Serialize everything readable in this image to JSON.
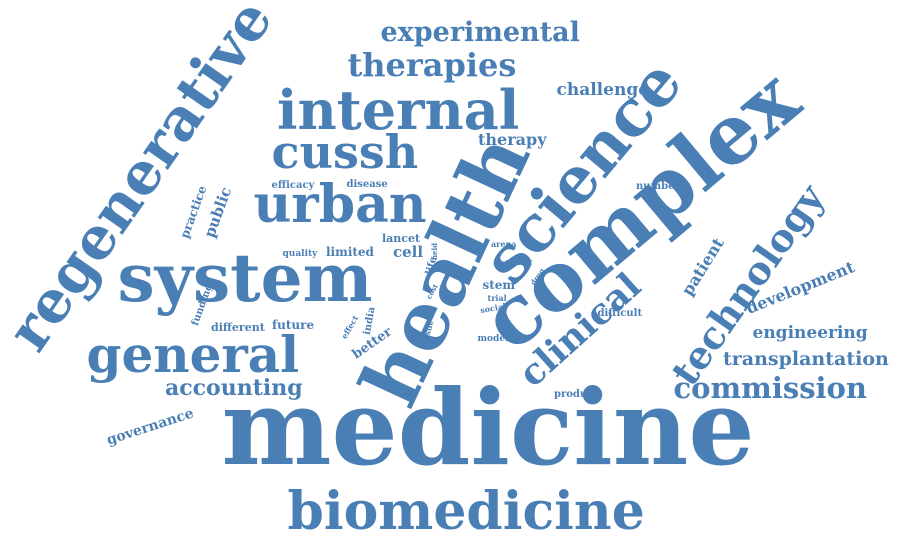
{
  "colors": {
    "word": "#4a7fb5",
    "background": "#ffffff"
  },
  "words": [
    {
      "id": "medicine",
      "text": "medicine"
    },
    {
      "id": "complex",
      "text": "complex"
    },
    {
      "id": "health",
      "text": "health"
    },
    {
      "id": "system",
      "text": "system"
    },
    {
      "id": "science",
      "text": "science"
    },
    {
      "id": "regenerative",
      "text": "regenerative"
    },
    {
      "id": "internal",
      "text": "internal"
    },
    {
      "id": "biomedicine",
      "text": "biomedicine"
    },
    {
      "id": "general",
      "text": "general"
    },
    {
      "id": "urban",
      "text": "urban"
    },
    {
      "id": "cussh",
      "text": "cussh"
    },
    {
      "id": "technology",
      "text": "technology"
    },
    {
      "id": "clinical",
      "text": "clinical"
    },
    {
      "id": "therapies",
      "text": "therapies"
    },
    {
      "id": "experimental",
      "text": "experimental"
    },
    {
      "id": "commission",
      "text": "commission"
    },
    {
      "id": "accounting",
      "text": "accounting"
    },
    {
      "id": "transplantation",
      "text": "transplantation"
    },
    {
      "id": "engineering",
      "text": "engineering"
    },
    {
      "id": "development",
      "text": "development"
    },
    {
      "id": "patient",
      "text": "patient"
    },
    {
      "id": "challenge",
      "text": "challenge"
    },
    {
      "id": "therapy",
      "text": "therapy"
    },
    {
      "id": "governance",
      "text": "governance"
    },
    {
      "id": "public",
      "text": "public"
    },
    {
      "id": "practice",
      "text": "practice"
    },
    {
      "id": "funding",
      "text": "funding"
    },
    {
      "id": "different",
      "text": "different"
    },
    {
      "id": "future",
      "text": "future"
    },
    {
      "id": "efficacy",
      "text": "efficacy"
    },
    {
      "id": "disease",
      "text": "disease"
    },
    {
      "id": "lancet",
      "text": "lancet"
    },
    {
      "id": "limited",
      "text": "limited"
    },
    {
      "id": "cell",
      "text": "cell"
    },
    {
      "id": "quality",
      "text": "quality"
    },
    {
      "id": "field",
      "text": "field"
    },
    {
      "id": "life",
      "text": "life"
    },
    {
      "id": "arena",
      "text": "arena"
    },
    {
      "id": "clinic",
      "text": "clinic"
    },
    {
      "id": "drug",
      "text": "drug"
    },
    {
      "id": "stem",
      "text": "stem"
    },
    {
      "id": "trial",
      "text": "trial"
    },
    {
      "id": "cost",
      "text": "cost"
    },
    {
      "id": "social",
      "text": "social"
    },
    {
      "id": "tissue",
      "text": "tissue"
    },
    {
      "id": "india",
      "text": "india"
    },
    {
      "id": "effect",
      "text": "effect"
    },
    {
      "id": "better",
      "text": "better"
    },
    {
      "id": "number",
      "text": "number"
    },
    {
      "id": "difficult",
      "text": "difficult"
    },
    {
      "id": "model",
      "text": "model"
    },
    {
      "id": "product",
      "text": "product"
    }
  ]
}
